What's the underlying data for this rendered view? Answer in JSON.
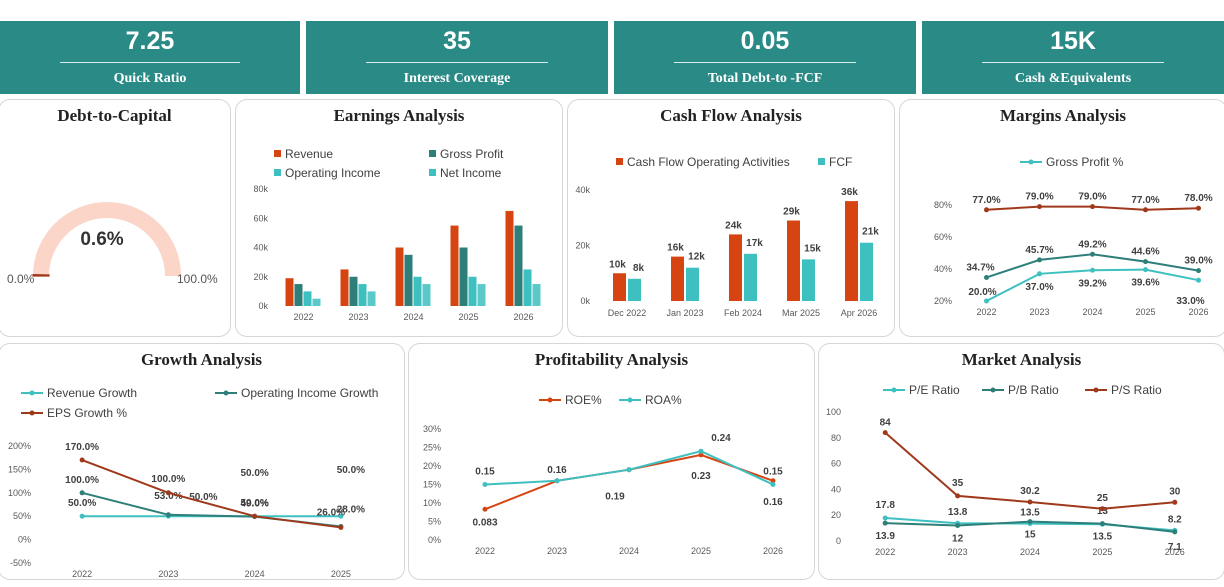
{
  "kpis": [
    {
      "value": "7.25",
      "label": "Quick Ratio"
    },
    {
      "value": "35",
      "label": "Interest Coverage"
    },
    {
      "value": "0.05",
      "label": "Total Debt-to -FCF"
    },
    {
      "value": "15K",
      "label": "Cash &Equivalents"
    }
  ],
  "colors": {
    "teal_dark": "#2a8a86",
    "orange": "#d64511",
    "teal": "#2e7f7a",
    "aqua": "#3ec0c0",
    "brown": "#a0391b",
    "gauge": "#fbd5c7"
  },
  "chart_data": [
    {
      "id": "debt_to_capital",
      "type": "gauge",
      "title": "Debt-to-Capital",
      "value": 0.006,
      "value_label": "0.6%",
      "min_label": "0.0%",
      "max_label": "100.0%"
    },
    {
      "id": "earnings",
      "type": "bar",
      "title": "Earnings Analysis",
      "categories": [
        "2022",
        "2023",
        "2024",
        "2025",
        "2026"
      ],
      "series": [
        {
          "name": "Revenue",
          "values": [
            19000,
            25000,
            40000,
            55000,
            65000
          ]
        },
        {
          "name": "Gross Profit",
          "values": [
            15000,
            20000,
            35000,
            40000,
            55000
          ]
        },
        {
          "name": "Operating Income",
          "values": [
            10000,
            15000,
            20000,
            20000,
            25000
          ]
        },
        {
          "name": "Net Income",
          "values": [
            5000,
            10000,
            15000,
            15000,
            15000
          ]
        }
      ],
      "ylim": [
        0,
        80000
      ],
      "yticks": [
        "0k",
        "20k",
        "40k",
        "60k",
        "80k"
      ]
    },
    {
      "id": "cash_flow",
      "type": "bar",
      "title": "Cash Flow Analysis",
      "categories": [
        "Dec 2022",
        "Jan 2023",
        "Feb 2024",
        "Mar 2025",
        "Apr 2026"
      ],
      "series": [
        {
          "name": "Cash Flow Operating Activities",
          "values": [
            10000,
            16000,
            24000,
            29000,
            36000
          ],
          "labels": [
            "10k",
            "16k",
            "24k",
            "29k",
            "36k"
          ]
        },
        {
          "name": "FCF",
          "values": [
            8000,
            12000,
            17000,
            15000,
            21000
          ],
          "labels": [
            "8k",
            "12k",
            "17k",
            "15k",
            "21k"
          ]
        }
      ],
      "ylim": [
        0,
        40000
      ],
      "yticks": [
        "0k",
        "20k",
        "40k"
      ]
    },
    {
      "id": "margins",
      "type": "line",
      "title": "Margins Analysis",
      "legend": [
        "Gross Profit %"
      ],
      "categories": [
        "2022",
        "2023",
        "2024",
        "2025",
        "2026"
      ],
      "series": [
        {
          "name": "Gross Profit %",
          "values": [
            20.0,
            37.0,
            39.2,
            39.6,
            33.0
          ],
          "labels": [
            "20.0%",
            "37.0%",
            "39.2%",
            "39.6%",
            "33.0%"
          ]
        },
        {
          "values": [
            34.7,
            45.7,
            49.2,
            44.6,
            39.0
          ],
          "labels": [
            "34.7%",
            "45.7%",
            "49.2%",
            "44.6%",
            "39.0%"
          ]
        },
        {
          "values": [
            77.0,
            79.0,
            79.0,
            77.0,
            78.0
          ],
          "labels": [
            "77.0%",
            "79.0%",
            "79.0%",
            "77.0%",
            "78.0%"
          ]
        }
      ],
      "ylim": [
        20,
        80
      ],
      "yticks": [
        "20%",
        "40%",
        "60%",
        "80%"
      ]
    },
    {
      "id": "growth",
      "type": "line",
      "title": "Growth Analysis",
      "categories": [
        "2022",
        "2023",
        "2024",
        "2025"
      ],
      "series": [
        {
          "name": "Revenue Growth",
          "values": [
            50.0,
            50.0,
            50.0,
            50.0
          ],
          "labels": [
            "50.0%",
            "50.0%",
            "50.0%",
            "50.0%"
          ]
        },
        {
          "name": "Operating Income Growth",
          "values": [
            100.0,
            53.0,
            49.0,
            28.0
          ],
          "labels": [
            "100.0%",
            "53.0%",
            "49.0%",
            "28.0%"
          ]
        },
        {
          "name": "EPS Growth %",
          "values": [
            170.0,
            100.0,
            50.0,
            26.0
          ],
          "labels": [
            "170.0%",
            "100.0%",
            "50.0%",
            "26.0%"
          ]
        }
      ],
      "ylim": [
        -50,
        200
      ],
      "yticks": [
        "-50%",
        "0%",
        "50%",
        "100%",
        "150%",
        "200%"
      ]
    },
    {
      "id": "profitability",
      "type": "line",
      "title": "Profitability Analysis",
      "categories": [
        "2022",
        "2023",
        "2024",
        "2025",
        "2026"
      ],
      "series": [
        {
          "name": "ROE%",
          "values": [
            0.083,
            0.16,
            0.19,
            0.23,
            0.16
          ],
          "labels": [
            "0.083",
            "0.16",
            "0.19",
            "0.23",
            "0.16"
          ]
        },
        {
          "name": "ROA%",
          "values": [
            0.15,
            0.16,
            0.19,
            0.24,
            0.15
          ],
          "labels": [
            "0.15",
            "",
            "",
            "0.24",
            "0.15"
          ]
        }
      ],
      "ylim": [
        0,
        0.3
      ],
      "yticks": [
        "0%",
        "5%",
        "10%",
        "15%",
        "20%",
        "25%",
        "30%"
      ]
    },
    {
      "id": "market",
      "type": "line",
      "title": "Market Analysis",
      "categories": [
        "2022",
        "2023",
        "2024",
        "2025",
        "2026"
      ],
      "series": [
        {
          "name": "P/E Ratio",
          "values": [
            17.8,
            13.8,
            13.5,
            13,
            8.2
          ],
          "labels": [
            "17.8",
            "13.8",
            "13.5",
            "13",
            "8.2"
          ]
        },
        {
          "name": "P/B Ratio",
          "values": [
            13.9,
            12,
            15,
            13.5,
            7.1
          ],
          "labels": [
            "13.9",
            "12",
            "15",
            "13.5",
            "7.1"
          ]
        },
        {
          "name": "P/S Ratio",
          "values": [
            84,
            35,
            30.2,
            25,
            30
          ],
          "labels": [
            "84",
            "35",
            "30.2",
            "25",
            "30"
          ]
        }
      ],
      "ylim": [
        0,
        100
      ],
      "yticks": [
        "0",
        "20",
        "40",
        "60",
        "80",
        "100"
      ]
    }
  ]
}
